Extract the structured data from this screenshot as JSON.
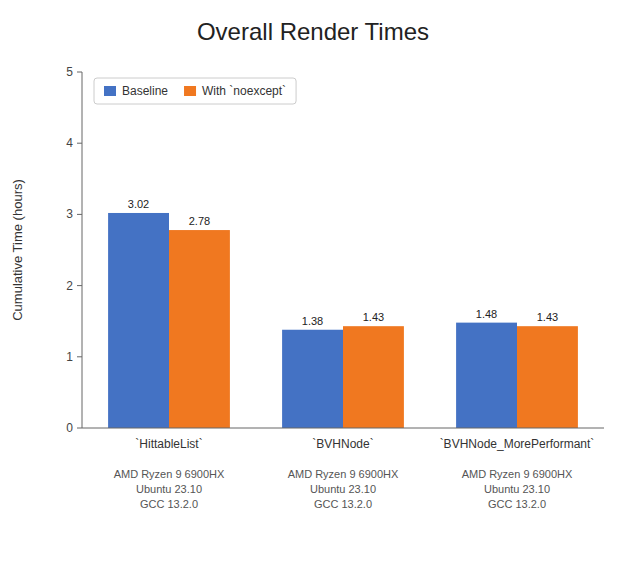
{
  "chart_data": {
    "type": "bar",
    "title": "Overall Render Times",
    "ylabel": "Cumulative Time (hours)",
    "categories": [
      "`HittableList`",
      "`BVHNode`",
      "`BVHNode_MorePerformant`"
    ],
    "annotations": [
      "AMD Ryzen 9 6900HX\nUbuntu 23.10\nGCC 13.2.0",
      "AMD Ryzen 9 6900HX\nUbuntu 23.10\nGCC 13.2.0",
      "AMD Ryzen 9 6900HX\nUbuntu 23.10\nGCC 13.2.0"
    ],
    "series": [
      {
        "name": "Baseline",
        "color": "#4472c4",
        "values": [
          3.02,
          1.38,
          1.48
        ]
      },
      {
        "name": "With `noexcept`",
        "color": "#f07820",
        "values": [
          2.78,
          1.43,
          1.43
        ]
      }
    ],
    "ylim": [
      0,
      5
    ],
    "yticks": [
      0,
      1,
      2,
      3,
      4,
      5
    ],
    "grid": false,
    "legend": "upper left",
    "data_labels": true
  }
}
